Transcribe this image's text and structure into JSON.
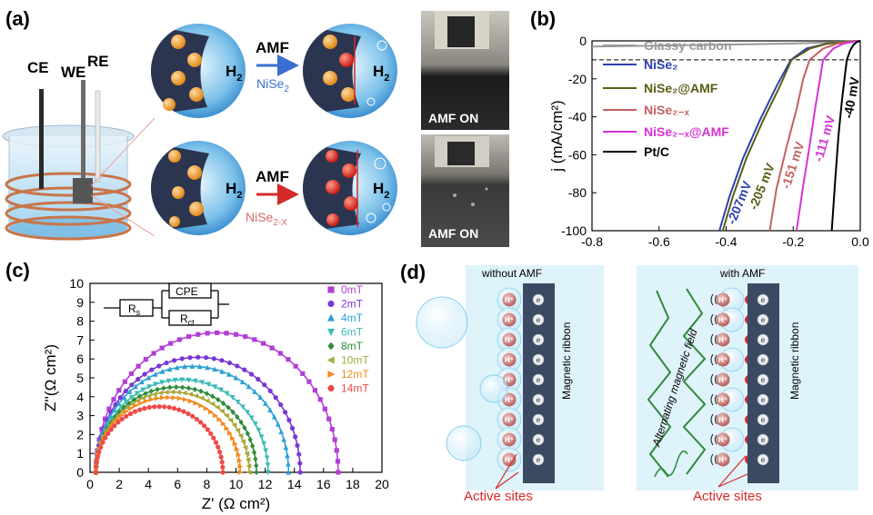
{
  "panel_a": {
    "label": "(a)",
    "electrodes": [
      "CE",
      "WE",
      "RE"
    ],
    "top_row": {
      "arrow_label": "AMF",
      "catalyst": "NiSe",
      "catalyst_sub": "2",
      "h2_left": "H",
      "h2_right": "H",
      "h2_sub": "2"
    },
    "bottom_row": {
      "arrow_label": "AMF",
      "catalyst": "NiSe",
      "catalyst_sub": "2-X",
      "h2_left": "H",
      "h2_right": "H",
      "h2_sub": "2"
    },
    "photo_top": "AMF ON",
    "photo_bottom": "AMF ON",
    "colors": {
      "sphere": "#5aa7dc",
      "electrode": "#2b3550",
      "particle": "#f2a33a",
      "red_particle": "#e53b2e",
      "coil": "#c8754a"
    }
  },
  "panel_b": {
    "label": "(b)"
  },
  "panel_c": {
    "label": "(c)",
    "circuit": {
      "rs": "R",
      "rs_sub": "s",
      "cpe": "CPE",
      "rct": "R",
      "rct_sub": "ct"
    }
  },
  "panel_d": {
    "label": "(d)",
    "left": {
      "title": "without AMF",
      "ribbon": "Magnetic ribbon",
      "active": "Active sites"
    },
    "right": {
      "title": "with AMF",
      "ribbon": "Magnetic ribbon",
      "active": "Active sites",
      "field": "Alternating magnetic field"
    },
    "ion": "H⁺",
    "electron": "e",
    "colors": {
      "bg": "#dff3fa",
      "ribbon": "#3a4a63",
      "ion": "#c77c7a",
      "wave": "#2e8b3a",
      "active": "#d42a2a"
    }
  },
  "chart_data": [
    {
      "type": "line",
      "panel": "(b)",
      "xlabel": "",
      "ylabel": "j (mA/cm²)",
      "xlim": [
        -0.8,
        0.0
      ],
      "ylim": [
        -100,
        0
      ],
      "xticks": [
        "-0.8",
        "-0.6",
        "-0.4",
        "-0.2",
        "0.0"
      ],
      "yticks": [
        "0",
        "-20",
        "-40",
        "-60",
        "-80",
        "-100"
      ],
      "reference_line_y": -10,
      "legend": {
        "placement": "upper-left"
      },
      "series": [
        {
          "name": "Glassy carbon",
          "color": "#9a9a9a",
          "x": [
            -0.8,
            -0.6,
            -0.4,
            -0.2,
            -0.1,
            0.0
          ],
          "y": [
            -3.0,
            -2.5,
            -2.0,
            -1.4,
            -0.8,
            0.0
          ]
        },
        {
          "name": "NiSe₂",
          "color": "#2a3fb0",
          "x": [
            -0.42,
            -0.39,
            -0.35,
            -0.3,
            -0.25,
            -0.207,
            -0.16,
            -0.1,
            -0.05,
            0.0
          ],
          "y": [
            -100,
            -82,
            -62,
            -42,
            -24,
            -10,
            -4,
            -1.5,
            -0.5,
            0.0
          ]
        },
        {
          "name": "NiSe₂@AMF",
          "color": "#5b5c17",
          "x": [
            -0.41,
            -0.38,
            -0.34,
            -0.29,
            -0.24,
            -0.205,
            -0.15,
            -0.1,
            -0.05,
            0.0
          ],
          "y": [
            -100,
            -82,
            -62,
            -42,
            -24,
            -10,
            -4,
            -1.5,
            -0.5,
            0.0
          ]
        },
        {
          "name": "NiSe₂₋ₓ",
          "color": "#c46060",
          "x": [
            -0.27,
            -0.25,
            -0.22,
            -0.19,
            -0.17,
            -0.151,
            -0.11,
            -0.07,
            -0.03,
            0.0
          ],
          "y": [
            -100,
            -78,
            -56,
            -36,
            -20,
            -10,
            -4,
            -1.5,
            -0.4,
            0.0
          ]
        },
        {
          "name": "NiSe₂₋ₓ@AMF",
          "color": "#d633d6",
          "x": [
            -0.19,
            -0.17,
            -0.15,
            -0.135,
            -0.12,
            -0.111,
            -0.08,
            -0.05,
            -0.02,
            0.0
          ],
          "y": [
            -100,
            -76,
            -54,
            -36,
            -20,
            -10,
            -4,
            -1.5,
            -0.4,
            0.0
          ]
        },
        {
          "name": "Pt/C",
          "color": "#000000",
          "x": [
            -0.085,
            -0.075,
            -0.065,
            -0.055,
            -0.045,
            -0.04,
            -0.03,
            -0.02,
            -0.01,
            0.0
          ],
          "y": [
            -100,
            -74,
            -50,
            -32,
            -17,
            -10,
            -5,
            -2,
            -0.6,
            0.0
          ]
        }
      ],
      "annotations": [
        {
          "text": "-207mV",
          "color": "#2a3fb0"
        },
        {
          "text": "-205 mV",
          "color": "#5b5c17"
        },
        {
          "text": "-151 mV",
          "color": "#c46060"
        },
        {
          "text": "-111 mV",
          "color": "#d633d6"
        },
        {
          "text": "-40 mV",
          "color": "#000000"
        }
      ]
    },
    {
      "type": "scatter",
      "panel": "(c)",
      "xlabel": "Z' (Ω cm²)",
      "ylabel": "Z''(Ω cm²)",
      "xlim": [
        0,
        20
      ],
      "ylim": [
        0,
        10
      ],
      "xticks": [
        "0",
        "2",
        "4",
        "6",
        "8",
        "10",
        "12",
        "14",
        "16",
        "18",
        "20"
      ],
      "yticks": [
        "0",
        "1",
        "2",
        "3",
        "4",
        "5",
        "6",
        "7",
        "8",
        "9",
        "10"
      ],
      "legend": {
        "placement": "top-right"
      },
      "series": [
        {
          "name": "0mT",
          "color": "#b23fd6",
          "marker": "square",
          "rs": 0.4,
          "rct": 16.6,
          "depression": 0.89
        },
        {
          "name": "2mT",
          "color": "#7a35d6",
          "marker": "circle",
          "rs": 0.4,
          "rct": 14.0,
          "depression": 0.87
        },
        {
          "name": "4mT",
          "color": "#2a9fd6",
          "marker": "triangle-up",
          "rs": 0.4,
          "rct": 13.2,
          "depression": 0.85
        },
        {
          "name": "6mT",
          "color": "#3bbbb4",
          "marker": "triangle-down",
          "rs": 0.4,
          "rct": 11.8,
          "depression": 0.83
        },
        {
          "name": "8mT",
          "color": "#2e8b3a",
          "marker": "diamond",
          "rs": 0.4,
          "rct": 11.0,
          "depression": 0.82
        },
        {
          "name": "10mT",
          "color": "#a8a83a",
          "marker": "triangle-left",
          "rs": 0.4,
          "rct": 10.5,
          "depression": 0.81
        },
        {
          "name": "12mT",
          "color": "#f08a1e",
          "marker": "triangle-right",
          "rs": 0.4,
          "rct": 9.9,
          "depression": 0.8
        },
        {
          "name": "14mT",
          "color": "#ef4a4a",
          "marker": "circle",
          "rs": 0.4,
          "rct": 8.7,
          "depression": 0.8
        }
      ]
    }
  ]
}
